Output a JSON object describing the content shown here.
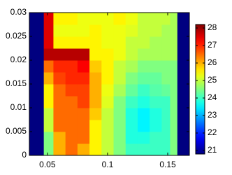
{
  "chart_data": {
    "type": "heatmap",
    "xbins": [
      0.035,
      0.047,
      0.055,
      0.065,
      0.075,
      0.085,
      0.095,
      0.105,
      0.115,
      0.125,
      0.135,
      0.145,
      0.152,
      0.158,
      0.168
    ],
    "ybins": [
      0,
      0.0025,
      0.005,
      0.0075,
      0.01,
      0.0125,
      0.015,
      0.0175,
      0.02,
      0.0225,
      0.025,
      0.0275,
      0.03
    ],
    "z": [
      [
        20.8,
        24.5,
        26,
        26.5,
        26,
        25.5,
        25,
        24.5,
        24,
        24,
        24,
        24,
        24.5,
        20.8
      ],
      [
        20.8,
        24.5,
        26,
        26.5,
        26.5,
        25.5,
        25,
        24.5,
        23.8,
        23.8,
        24,
        24,
        24.5,
        20.8
      ],
      [
        20.8,
        25,
        26.5,
        26.5,
        26.5,
        25.5,
        25,
        24.5,
        23.8,
        23.5,
        23.8,
        24,
        24.5,
        20.8
      ],
      [
        20.8,
        25,
        26.5,
        26.5,
        26.5,
        25.8,
        25,
        24.5,
        23.8,
        23.5,
        23.8,
        24,
        24.5,
        20.8
      ],
      [
        20.8,
        25.5,
        26.5,
        26.5,
        26.8,
        26,
        25.2,
        24.5,
        24,
        23.8,
        24,
        24,
        24.5,
        20.8
      ],
      [
        20.8,
        25.5,
        26.5,
        26.8,
        26.8,
        26,
        25.3,
        24.8,
        24.3,
        24,
        24.2,
        24.3,
        24.5,
        20.8
      ],
      [
        20.8,
        26,
        26.8,
        27,
        27,
        26,
        25.5,
        25,
        24.5,
        24.3,
        24.3,
        24.5,
        24.5,
        20.8
      ],
      [
        20.8,
        26.5,
        27,
        27,
        27.3,
        25.8,
        25.5,
        25,
        24.8,
        24.5,
        24.5,
        24.5,
        24.5,
        20.8
      ],
      [
        20.8,
        27.8,
        27.8,
        27.8,
        27.8,
        25.5,
        25.5,
        25.3,
        25,
        24.8,
        24.8,
        24.8,
        24.8,
        20.8
      ],
      [
        20.8,
        27.5,
        25.5,
        25.5,
        25.5,
        25.5,
        25.3,
        25.3,
        25,
        25,
        24.8,
        24.8,
        24.8,
        20.8
      ],
      [
        20.8,
        27.5,
        25.3,
        25.3,
        25.3,
        25.5,
        25.3,
        25.3,
        25.2,
        25,
        25,
        24.8,
        24.8,
        20.8
      ],
      [
        20.8,
        27.5,
        25.5,
        25.5,
        25.3,
        25.3,
        25.3,
        25.5,
        25.3,
        25,
        25,
        25,
        24.8,
        20.8
      ]
    ],
    "xlim": [
      0.035,
      0.168
    ],
    "xticks": [
      0.05,
      0.1,
      0.15
    ],
    "ylim": [
      0,
      0.03
    ],
    "yticks": [
      0,
      0.005,
      0.01,
      0.015,
      0.02,
      0.025,
      0.03
    ],
    "colormap": "jet",
    "clim": [
      20.8,
      28.2
    ],
    "cticks": [
      21,
      22,
      23,
      24,
      25,
      26,
      27,
      28
    ]
  }
}
